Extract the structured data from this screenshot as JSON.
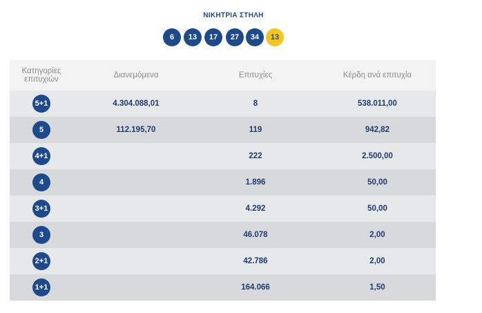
{
  "header": {
    "title": "ΝΙΚΗΤΡΙΑ ΣΤΗΛΗ",
    "numbers": [
      6,
      13,
      17,
      27,
      34
    ],
    "bonus": 13
  },
  "table": {
    "headers": [
      "Κατηγορίες επιτυχιών",
      "Διανεμόμενα",
      "Επιτυχίες",
      "Κέρδη ανά επιτυχία"
    ],
    "rows": [
      [
        "5+1",
        "4.304.088,01",
        "8",
        "538.011,00"
      ],
      [
        "5",
        "112.195,70",
        "119",
        "942,82"
      ],
      [
        "4+1",
        null,
        "222",
        "2.500,00"
      ],
      [
        "4",
        null,
        "1.896",
        "50,00"
      ],
      [
        "3+1",
        null,
        "4.292",
        "50,00"
      ],
      [
        "3",
        null,
        "46.078",
        "2,00"
      ],
      [
        "2+1",
        null,
        "42.786",
        "2,00"
      ],
      [
        "1+1",
        null,
        "164.066",
        "1,50"
      ]
    ]
  }
}
